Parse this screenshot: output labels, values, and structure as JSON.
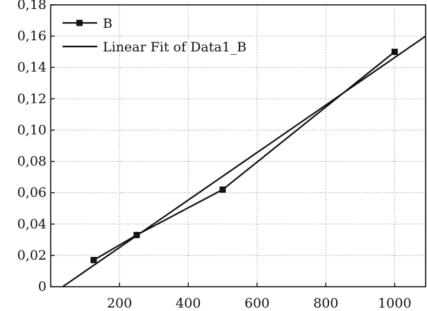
{
  "chart_data": {
    "type": "line",
    "title": "",
    "xlabel": "",
    "ylabel": "",
    "xlim": [
      0,
      1090
    ],
    "ylim": [
      0,
      0.18
    ],
    "x_ticks": [
      200,
      400,
      600,
      800,
      1000
    ],
    "x_tick_labels": [
      "200",
      "400",
      "600",
      "800",
      "1000"
    ],
    "y_ticks": [
      0,
      0.02,
      0.04,
      0.06,
      0.08,
      0.1,
      0.12,
      0.14,
      0.16,
      0.18
    ],
    "y_tick_labels": [
      "0",
      "0,02",
      "0,04",
      "0,06",
      "0,08",
      "0,10",
      "0,12",
      "0,14",
      "0,16",
      "0,18"
    ],
    "grid": true,
    "legend_position": "top-left",
    "series": [
      {
        "name": "B",
        "style": "line-with-square-markers",
        "color": "#111111",
        "points": [
          {
            "x": 125,
            "y": 0.017
          },
          {
            "x": 250,
            "y": 0.033
          },
          {
            "x": 500,
            "y": 0.062
          },
          {
            "x": 1000,
            "y": 0.15
          }
        ]
      },
      {
        "name": "Linear Fit of Data1_B",
        "style": "line",
        "color": "#111111",
        "points": [
          {
            "x": 35,
            "y": 0.0
          },
          {
            "x": 1090,
            "y": 0.16
          }
        ]
      }
    ]
  }
}
